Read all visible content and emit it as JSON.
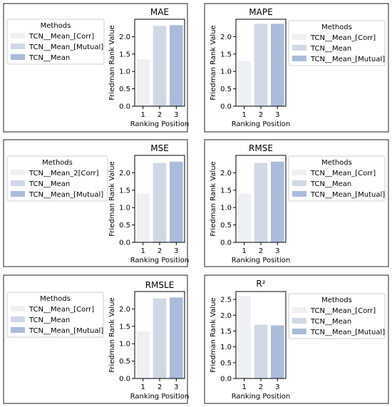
{
  "colors": {
    "rank1": "#eff0f3",
    "rank2": "#d0d8e7",
    "rank3": "#aabcdb"
  },
  "chart_data": [
    {
      "type": "bar",
      "title": "MAE",
      "categories": [
        "1",
        "2",
        "3"
      ],
      "values": [
        1.35,
        2.31,
        2.33
      ],
      "xlabel": "Ranking Position",
      "ylabel": "Friedman Rank Value",
      "ylim": [
        0,
        2.5
      ],
      "yticks": [
        "0.0",
        "0.5",
        "1.0",
        "1.5",
        "2.0"
      ],
      "legend_title": "Methods",
      "legend": [
        "TCN__Mean_[Corr]",
        "TCN__Mean_[Mutual]",
        "TCN__Mean"
      ],
      "legend_placement": "left"
    },
    {
      "type": "bar",
      "title": "MAPE",
      "categories": [
        "1",
        "2",
        "3"
      ],
      "values": [
        1.3,
        2.37,
        2.37
      ],
      "xlabel": "Ranking Position",
      "ylabel": "Friedman Rank Value",
      "ylim": [
        0,
        2.5
      ],
      "yticks": [
        "0.0",
        "0.5",
        "1.0",
        "1.5",
        "2.0"
      ],
      "legend_title": "Methods",
      "legend": [
        "TCN__Mean_[Corr]",
        "TCN__Mean",
        "TCN__Mean_[Mutual]"
      ],
      "legend_placement": "right"
    },
    {
      "type": "bar",
      "title": "MSE",
      "categories": [
        "1",
        "2",
        "3"
      ],
      "values": [
        1.4,
        2.28,
        2.32
      ],
      "xlabel": "Ranking Position",
      "ylabel": "Friedman Rank Value",
      "ylim": [
        0,
        2.5
      ],
      "yticks": [
        "0.0",
        "0.5",
        "1.0",
        "1.5",
        "2.0"
      ],
      "legend_title": "Methods",
      "legend": [
        "TCN__Mean_2[Corr]",
        "TCN__Mean",
        "TCN__Mean_[Mutual]"
      ],
      "legend_placement": "left"
    },
    {
      "type": "bar",
      "title": "RMSE",
      "categories": [
        "1",
        "2",
        "3"
      ],
      "values": [
        1.4,
        2.28,
        2.32
      ],
      "xlabel": "Ranking Position",
      "ylabel": "Friedman Rank Value",
      "ylim": [
        0,
        2.5
      ],
      "yticks": [
        "0.0",
        "0.5",
        "1.0",
        "1.5",
        "2.0"
      ],
      "legend_title": "Methods",
      "legend": [
        "TCN__Mean_[Corr]",
        "TCN__Mean",
        "TCN__Mean_[Mutual]"
      ],
      "legend_placement": "right"
    },
    {
      "type": "bar",
      "title": "RMSLE",
      "categories": [
        "1",
        "2",
        "3"
      ],
      "values": [
        1.35,
        2.3,
        2.33
      ],
      "xlabel": "Ranking Position",
      "ylabel": "Friedman Rank Value",
      "ylim": [
        0,
        2.5
      ],
      "yticks": [
        "0.0",
        "0.5",
        "1.0",
        "1.5",
        "2.0"
      ],
      "legend_title": "Methods",
      "legend": [
        "TCN__Mean_[Corr]",
        "TCN__Mean",
        "TCN__Mean_[Mutual]"
      ],
      "legend_placement": "left"
    },
    {
      "type": "bar",
      "title": "R²",
      "categories": [
        "1",
        "2",
        "3"
      ],
      "values": [
        2.6,
        1.7,
        1.68
      ],
      "xlabel": "Ranking Position",
      "ylabel": "Friedman Rank Value",
      "ylim": [
        0,
        2.75
      ],
      "yticks": [
        "0.0",
        "0.5",
        "1.0",
        "1.5",
        "2.0",
        "2.5"
      ],
      "legend_title": "Methods",
      "legend": [
        "TCN__Mean_[Corr]",
        "TCN__Mean",
        "TCN__Mean_[Mutual]"
      ],
      "legend_placement": "right"
    }
  ]
}
